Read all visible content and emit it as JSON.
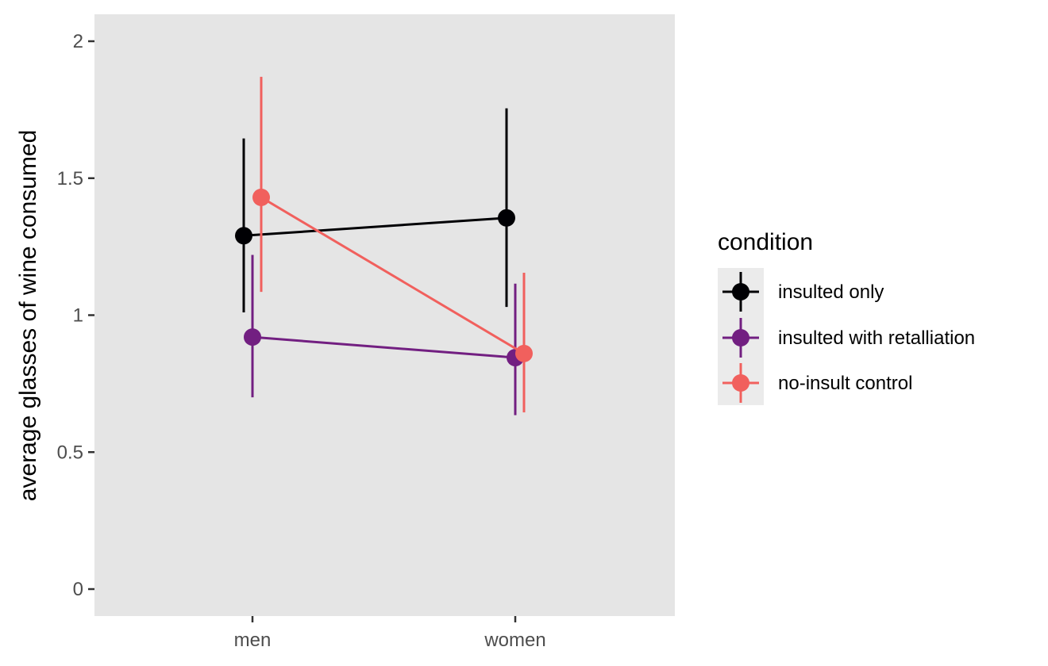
{
  "chart_data": {
    "type": "line",
    "categories": [
      "men",
      "women"
    ],
    "ylabel": "average glasses of wine consumed",
    "xlabel": "",
    "ylim": [
      -0.08,
      2.1
    ],
    "yticks": [
      0,
      0.5,
      1,
      1.5,
      2
    ],
    "ytick_labels": [
      "0",
      "0.5",
      "1",
      "1.5",
      "2"
    ],
    "grid": false,
    "legend": {
      "title": "condition",
      "placement": "right"
    },
    "error_bars": true,
    "series": [
      {
        "name": "insulted only",
        "color": "#000004",
        "values": [
          1.29,
          1.355
        ],
        "lower": [
          1.01,
          1.03
        ],
        "upper": [
          1.645,
          1.755
        ]
      },
      {
        "name": "insulted with retalliation",
        "color": "#721f81",
        "values": [
          0.92,
          0.845
        ],
        "lower": [
          0.7,
          0.635
        ],
        "upper": [
          1.22,
          1.115
        ]
      },
      {
        "name": "no-insult control",
        "color": "#f1605d",
        "values": [
          1.43,
          0.86
        ],
        "lower": [
          1.085,
          0.645
        ],
        "upper": [
          1.87,
          1.155
        ]
      }
    ]
  }
}
